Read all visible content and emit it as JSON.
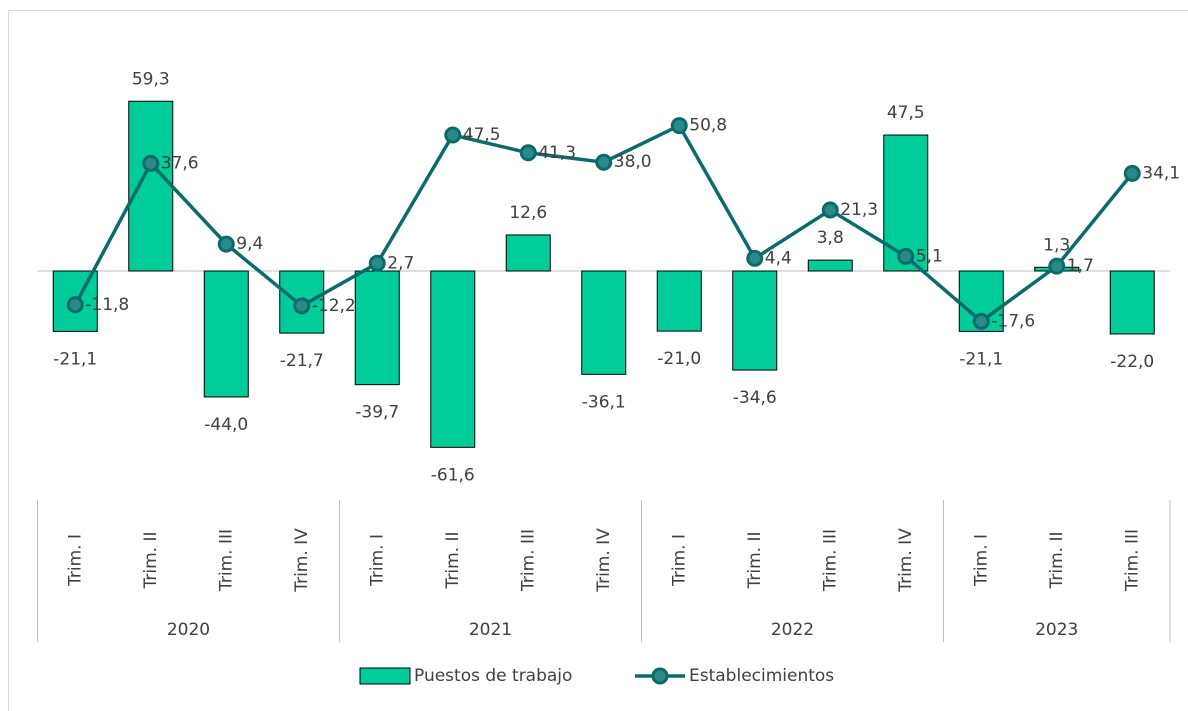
{
  "chart_data": {
    "type": "bar-line",
    "category_groups": [
      {
        "name": "2020",
        "categories": [
          "Trim. I",
          "Trim. II",
          "Trim. III",
          "Trim. IV"
        ]
      },
      {
        "name": "2021",
        "categories": [
          "Trim. I",
          "Trim. II",
          "Trim. III",
          "Trim. IV"
        ]
      },
      {
        "name": "2022",
        "categories": [
          "Trim. I",
          "Trim. II",
          "Trim. III",
          "Trim. IV"
        ]
      },
      {
        "name": "2023",
        "categories": [
          "Trim. I",
          "Trim. II",
          "Trim. III"
        ]
      }
    ],
    "series": [
      {
        "name": "Puestos de trabajo",
        "type": "bar",
        "color": "#00CC99",
        "values": [
          -21.1,
          59.3,
          -44.0,
          -21.7,
          -39.7,
          -61.6,
          12.6,
          -36.1,
          -21.0,
          -34.6,
          3.8,
          47.5,
          -21.1,
          1.3,
          -22.0
        ],
        "value_labels": [
          "-21,1",
          "59,3",
          "-44,0",
          "-21,7",
          "-39,7",
          "-61,6",
          "12,6",
          "-36,1",
          "-21,0",
          "-34,6",
          "3,8",
          "47,5",
          "-21,1",
          "1,3",
          "-22,0"
        ]
      },
      {
        "name": "Establecimientos",
        "type": "line",
        "color": "#0B6B6B",
        "values": [
          -11.8,
          37.6,
          9.4,
          -12.2,
          2.7,
          47.5,
          41.3,
          38.0,
          50.8,
          4.4,
          21.3,
          5.1,
          -17.6,
          1.7,
          34.1
        ],
        "value_labels": [
          "-11,8",
          "37,6",
          "9,4",
          "-12,2",
          "2,7",
          "47,5",
          "41,3",
          "38,0",
          "50,8",
          "4,4",
          "21,3",
          "5,1",
          "-17,6",
          "1,7",
          "34,1"
        ]
      }
    ],
    "ylim": [
      -80,
      80
    ],
    "legend": "bottom"
  }
}
